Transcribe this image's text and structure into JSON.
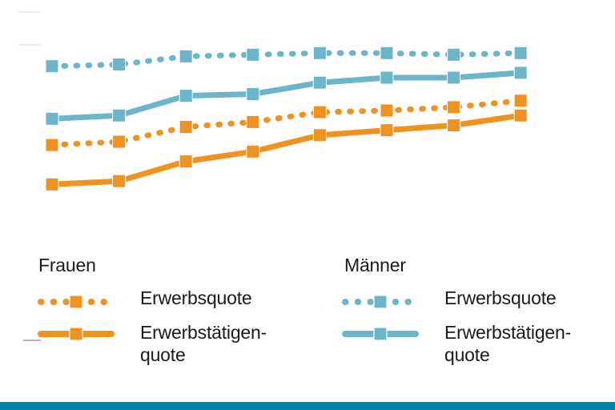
{
  "colors": {
    "frauen": "#F0921F",
    "maenner": "#6CB6CC",
    "footer_bar": "#087FA6",
    "text": "#1A1A1A",
    "tick_light": "#ECECEC",
    "tick_dark": "#B3B3B3"
  },
  "legend": {
    "frauen": {
      "header": "Frauen",
      "items": [
        {
          "label": "Erwerbsquote",
          "style": "dotted"
        },
        {
          "label": "Erwerbstätigen-\nquote",
          "style": "solid"
        }
      ]
    },
    "maenner": {
      "header": "Männer",
      "items": [
        {
          "label": "Erwerbsquote",
          "style": "dotted"
        },
        {
          "label": "Erwerbstätigen-\nquote",
          "style": "solid"
        }
      ]
    }
  },
  "chart_data": {
    "type": "line",
    "title": "",
    "x": [
      1,
      2,
      3,
      4,
      5,
      6,
      7,
      8
    ],
    "x_tick_labels_visible": false,
    "y_tick_labels_visible": false,
    "ylim": [
      0,
      100
    ],
    "legend_position": "bottom",
    "tick_fragments": [
      {
        "value": 100,
        "shade": "light"
      },
      {
        "value": 90,
        "shade": "light"
      },
      {
        "value": 0,
        "shade": "dark"
      }
    ],
    "series": [
      {
        "name": "Männer Erwerbsquote",
        "group": "maenner",
        "style": "dotted",
        "values": [
          83.5,
          84,
          86.5,
          87,
          87.5,
          87.5,
          87,
          87.5
        ]
      },
      {
        "name": "Männer Erwerbstätigenquote",
        "group": "maenner",
        "style": "solid",
        "values": [
          67.5,
          68.5,
          74.5,
          75,
          78.5,
          80,
          80,
          81.5
        ]
      },
      {
        "name": "Frauen Erwerbsquote",
        "group": "frauen",
        "style": "dotted",
        "values": [
          59.5,
          60.5,
          65,
          66.5,
          69.5,
          70,
          71,
          73
        ]
      },
      {
        "name": "Frauen Erwerbstätigenquote",
        "group": "frauen",
        "style": "solid",
        "values": [
          47.5,
          48.5,
          54.5,
          57.5,
          62.5,
          64,
          65.5,
          68.5
        ]
      }
    ]
  }
}
